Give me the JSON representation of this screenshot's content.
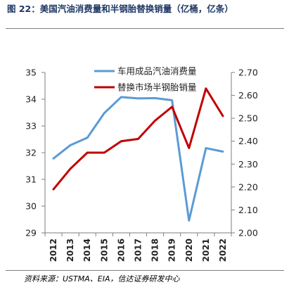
{
  "header": {
    "title": "图 22：美国汽油消费量和半钢胎替换销量（亿桶，亿条）"
  },
  "footer": {
    "source": "资料来源：USTMA、EIA，信达证券研发中心"
  },
  "chart_data": {
    "type": "line",
    "categories": [
      "2012",
      "2013",
      "2014",
      "2015",
      "2016",
      "2017",
      "2018",
      "2019",
      "2020",
      "2021",
      "2022"
    ],
    "series": [
      {
        "name": "车用成品汽油消费量",
        "axis": "left",
        "color": "#5b9bd5",
        "values": [
          31.78,
          32.28,
          32.56,
          33.48,
          34.08,
          34.03,
          34.04,
          33.96,
          29.46,
          32.17,
          32.04
        ]
      },
      {
        "name": "替换市场半钢胎销量",
        "axis": "right",
        "color": "#c00000",
        "values": [
          2.19,
          2.28,
          2.35,
          2.35,
          2.4,
          2.41,
          2.49,
          2.55,
          2.37,
          2.63,
          2.51
        ]
      }
    ],
    "left_axis": {
      "ylim": [
        29,
        35
      ],
      "ticks": [
        "29",
        "30",
        "31",
        "32",
        "33",
        "34",
        "35"
      ]
    },
    "right_axis": {
      "ylim": [
        2.0,
        2.7
      ],
      "ticks": [
        "2.00",
        "2.10",
        "2.20",
        "2.30",
        "2.40",
        "2.50",
        "2.60",
        "2.70"
      ]
    },
    "legend_position": "top-center",
    "grid": false
  }
}
